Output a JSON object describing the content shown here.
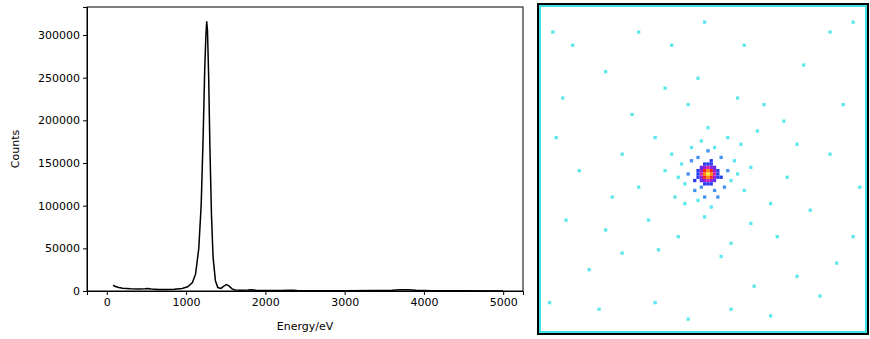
{
  "chart_data": [
    {
      "type": "line",
      "x_label": "Energy/eV",
      "y_label": "Counts",
      "x": [
        80,
        100,
        150,
        200,
        300,
        400,
        480,
        520,
        560,
        650,
        750,
        850,
        950,
        1020,
        1080,
        1120,
        1160,
        1190,
        1215,
        1235,
        1250,
        1260,
        1270,
        1285,
        1300,
        1320,
        1340,
        1370,
        1400,
        1440,
        1480,
        1510,
        1540,
        1580,
        1620,
        1700,
        1780,
        1820,
        1880,
        2000,
        2200,
        2300,
        2350,
        2400,
        2600,
        3000,
        3400,
        3600,
        3700,
        3800,
        3900,
        4100,
        4500,
        5000
      ],
      "values": [
        7000,
        5500,
        4000,
        3200,
        2500,
        2300,
        2600,
        2900,
        2400,
        1800,
        1700,
        2000,
        3000,
        5000,
        10000,
        20000,
        50000,
        100000,
        180000,
        260000,
        300000,
        316000,
        305000,
        250000,
        170000,
        90000,
        40000,
        12000,
        4000,
        3000,
        6000,
        7500,
        6000,
        2500,
        1200,
        1000,
        1200,
        1400,
        900,
        600,
        500,
        800,
        1000,
        600,
        400,
        300,
        500,
        900,
        1400,
        1500,
        900,
        300,
        200,
        100
      ],
      "color": "#000000",
      "xlim": [
        -250,
        5250
      ],
      "ylim": [
        0,
        332800
      ],
      "xticks": [
        0,
        1000,
        2000,
        3000,
        4000,
        5000
      ],
      "yticks": [
        0,
        50000,
        100000,
        150000,
        200000,
        250000,
        300000
      ],
      "grid": false
    },
    {
      "type": "heatmap",
      "tick_labels": false,
      "xlim": [
        0,
        100
      ],
      "ylim": [
        0,
        100
      ],
      "zlim": [
        0,
        10
      ],
      "cells": [
        [
          51,
          51,
          10
        ],
        [
          50,
          51,
          9
        ],
        [
          52,
          51,
          9
        ],
        [
          51,
          50,
          9
        ],
        [
          51,
          52,
          9
        ],
        [
          50,
          50,
          8
        ],
        [
          52,
          50,
          8
        ],
        [
          50,
          52,
          8
        ],
        [
          52,
          52,
          8
        ],
        [
          49,
          51,
          6
        ],
        [
          53,
          51,
          6
        ],
        [
          51,
          49,
          6
        ],
        [
          51,
          53,
          6
        ],
        [
          49,
          50,
          5
        ],
        [
          49,
          52,
          5
        ],
        [
          53,
          50,
          5
        ],
        [
          53,
          52,
          5
        ],
        [
          50,
          49,
          5
        ],
        [
          52,
          49,
          5
        ],
        [
          50,
          53,
          5
        ],
        [
          52,
          53,
          5
        ],
        [
          49,
          49,
          4
        ],
        [
          53,
          49,
          4
        ],
        [
          49,
          53,
          4
        ],
        [
          53,
          53,
          4
        ],
        [
          48,
          51,
          3
        ],
        [
          54,
          51,
          3
        ],
        [
          51,
          48,
          3
        ],
        [
          51,
          54,
          3
        ],
        [
          48,
          50,
          3
        ],
        [
          48,
          52,
          3
        ],
        [
          54,
          50,
          3
        ],
        [
          54,
          52,
          3
        ],
        [
          50,
          48,
          3
        ],
        [
          52,
          48,
          3
        ],
        [
          50,
          54,
          3
        ],
        [
          52,
          54,
          3
        ],
        [
          45,
          51,
          2
        ],
        [
          57,
          50,
          2
        ],
        [
          51,
          44,
          2
        ],
        [
          50,
          58,
          2
        ],
        [
          46,
          47,
          2
        ],
        [
          56,
          55,
          2
        ],
        [
          47,
          56,
          2
        ],
        [
          55,
          46,
          2
        ],
        [
          44,
          54,
          1
        ],
        [
          58,
          53,
          1
        ],
        [
          53,
          43,
          1
        ],
        [
          48,
          59,
          1
        ],
        [
          43,
          48,
          1
        ],
        [
          59,
          47,
          1
        ],
        [
          54,
          58,
          2
        ],
        [
          46,
          43,
          1
        ],
        [
          42,
          52,
          1
        ],
        [
          60,
          51,
          1
        ],
        [
          49,
          41,
          1
        ],
        [
          52,
          61,
          1
        ],
        [
          40,
          45,
          1
        ],
        [
          62,
          56,
          1
        ],
        [
          57,
          40,
          1
        ],
        [
          44,
          60,
          1
        ],
        [
          38,
          50,
          1
        ],
        [
          64,
          49,
          1
        ],
        [
          51,
          37,
          1
        ],
        [
          50,
          64,
          1
        ],
        [
          41,
          58,
          1
        ],
        [
          61,
          42,
          1
        ],
        [
          47,
          53,
          3
        ],
        [
          55,
          52,
          3
        ],
        [
          52,
          47,
          3
        ],
        [
          49,
          55,
          2
        ],
        [
          53,
          56,
          2
        ],
        [
          48,
          46,
          2
        ],
        [
          35,
          40,
          1
        ],
        [
          66,
          38,
          1
        ],
        [
          30,
          55,
          1
        ],
        [
          70,
          60,
          1
        ],
        [
          45,
          30,
          1
        ],
        [
          58,
          72,
          1
        ],
        [
          33,
          65,
          1
        ],
        [
          68,
          30,
          1
        ],
        [
          25,
          45,
          1
        ],
        [
          75,
          52,
          1
        ],
        [
          42,
          70,
          1
        ],
        [
          60,
          28,
          1
        ],
        [
          28,
          33,
          1
        ],
        [
          72,
          70,
          1
        ],
        [
          38,
          25,
          1
        ],
        [
          55,
          76,
          1
        ],
        [
          22,
          58,
          1
        ],
        [
          78,
          42,
          1
        ],
        [
          48,
          22,
          1
        ],
        [
          64,
          66,
          1
        ],
        [
          36,
          74,
          1
        ],
        [
          74,
          35,
          1
        ],
        [
          10,
          12,
          1
        ],
        [
          88,
          8,
          1
        ],
        [
          5,
          40,
          1
        ],
        [
          92,
          30,
          1
        ],
        [
          15,
          80,
          1
        ],
        [
          85,
          88,
          1
        ],
        [
          50,
          5,
          1
        ],
        [
          45,
          95,
          1
        ],
        [
          8,
          65,
          1
        ],
        [
          95,
          70,
          1
        ],
        [
          20,
          20,
          1
        ],
        [
          80,
          18,
          1
        ],
        [
          18,
          92,
          1
        ],
        [
          70,
          94,
          1
        ],
        [
          30,
          8,
          1
        ],
        [
          62,
          12,
          1
        ],
        [
          3,
          90,
          1
        ],
        [
          97,
          55,
          1
        ],
        [
          12,
          50,
          1
        ],
        [
          90,
          78,
          1
        ],
        [
          25,
          75,
          1
        ],
        [
          78,
          82,
          1
        ],
        [
          35,
          90,
          1
        ],
        [
          65,
          85,
          1
        ],
        [
          40,
          12,
          1
        ],
        [
          88,
          45,
          1
        ],
        [
          7,
          28,
          1
        ],
        [
          58,
          92,
          1
        ],
        [
          20,
          68,
          1
        ],
        [
          82,
          62,
          1
        ],
        [
          95,
          5,
          1
        ],
        [
          4,
          8,
          1
        ]
      ]
    }
  ]
}
